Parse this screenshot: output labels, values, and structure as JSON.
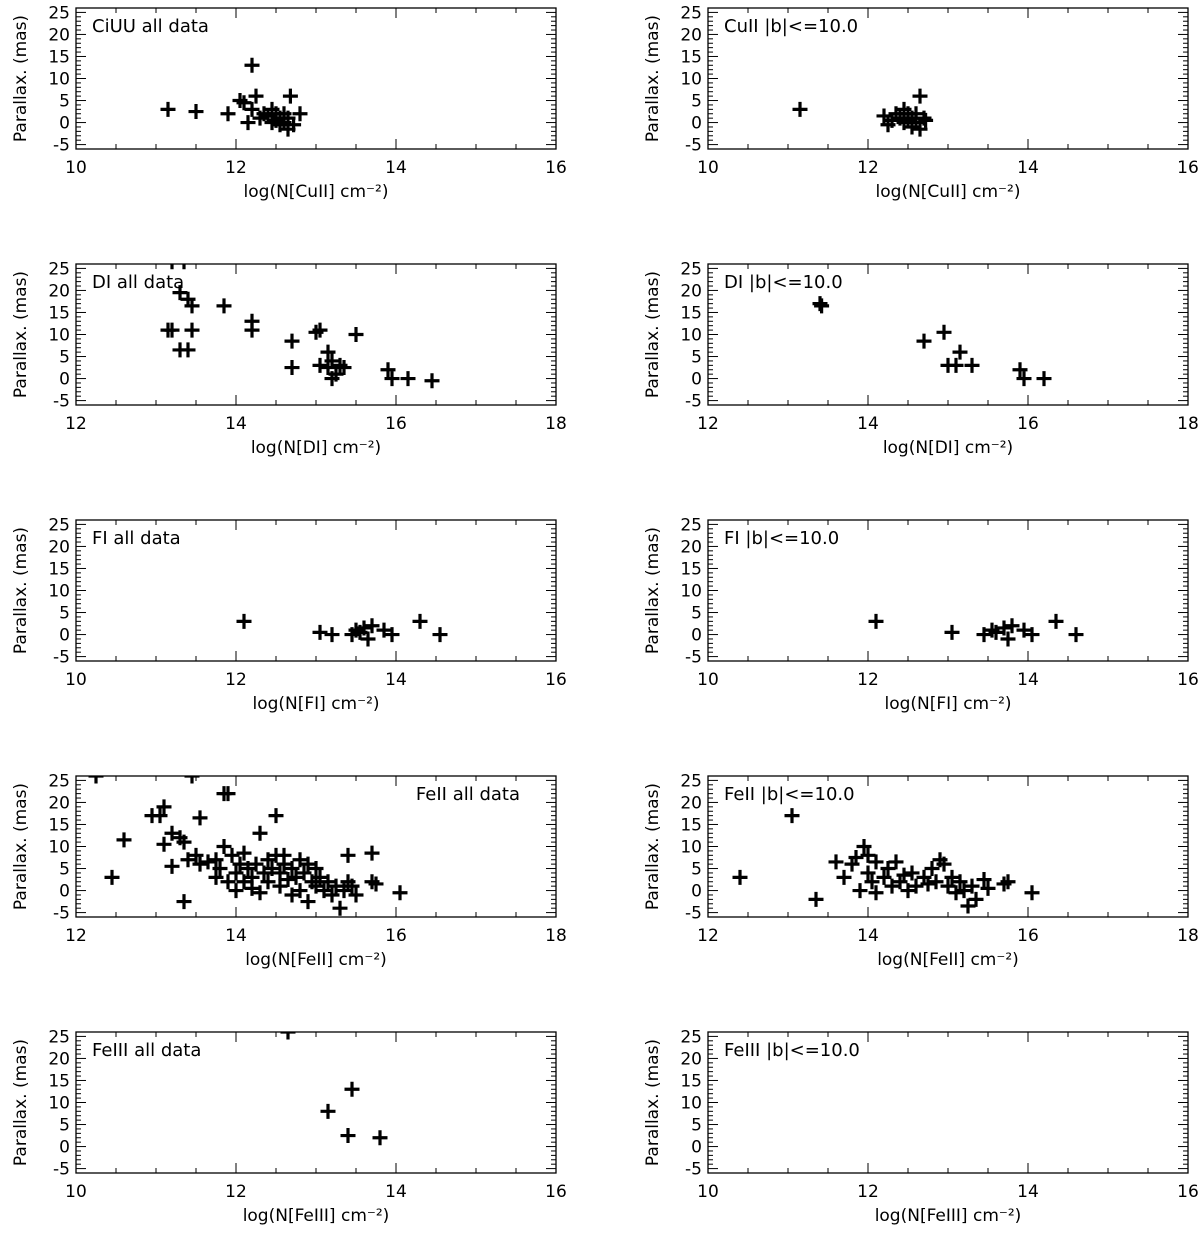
{
  "chart_data": [
    {
      "type": "scatter",
      "title": "CiUU all data",
      "title_pos": "top-left",
      "xlabel": "log(N[CuII] cm⁻²)",
      "ylabel": "Parallax. (mas)",
      "xlim": [
        10,
        16
      ],
      "ylim": [
        -6,
        26
      ],
      "xticks": [
        10,
        12,
        14,
        16
      ],
      "yticks": [
        -5,
        0,
        5,
        10,
        15,
        20,
        25
      ],
      "points": [
        [
          11.15,
          3
        ],
        [
          11.5,
          2.5
        ],
        [
          11.9,
          2
        ],
        [
          12.05,
          5
        ],
        [
          12.1,
          4.5
        ],
        [
          12.15,
          0
        ],
        [
          12.2,
          3
        ],
        [
          12.2,
          13
        ],
        [
          12.25,
          6
        ],
        [
          12.3,
          1
        ],
        [
          12.35,
          2
        ],
        [
          12.4,
          1.5
        ],
        [
          12.45,
          0
        ],
        [
          12.45,
          3
        ],
        [
          12.5,
          2
        ],
        [
          12.5,
          0.5
        ],
        [
          12.55,
          1
        ],
        [
          12.55,
          -0.5
        ],
        [
          12.6,
          2
        ],
        [
          12.6,
          0
        ],
        [
          12.65,
          -1.5
        ],
        [
          12.65,
          1
        ],
        [
          12.68,
          6
        ],
        [
          12.72,
          -0.5
        ],
        [
          12.8,
          2
        ]
      ]
    },
    {
      "type": "scatter",
      "title": "CuII |b|<=10.0",
      "title_pos": "top-left",
      "xlabel": "log(N[CuII] cm⁻²)",
      "ylabel": "Parallax. (mas)",
      "xlim": [
        10,
        16
      ],
      "ylim": [
        -6,
        26
      ],
      "xticks": [
        10,
        12,
        14,
        16
      ],
      "yticks": [
        -5,
        0,
        5,
        10,
        15,
        20,
        25
      ],
      "points": [
        [
          11.15,
          3
        ],
        [
          12.2,
          1.5
        ],
        [
          12.25,
          -0.5
        ],
        [
          12.3,
          0.5
        ],
        [
          12.35,
          2
        ],
        [
          12.4,
          1
        ],
        [
          12.45,
          3
        ],
        [
          12.45,
          0
        ],
        [
          12.5,
          2
        ],
        [
          12.5,
          0.5
        ],
        [
          12.55,
          1
        ],
        [
          12.55,
          -1
        ],
        [
          12.6,
          2
        ],
        [
          12.6,
          0
        ],
        [
          12.65,
          6
        ],
        [
          12.65,
          -1.5
        ],
        [
          12.7,
          1
        ],
        [
          12.72,
          0.5
        ]
      ]
    },
    {
      "type": "scatter",
      "title": "DI all data",
      "title_pos": "top-left",
      "xlabel": "log(N[DI] cm⁻²)",
      "ylabel": "Parallax. (mas)",
      "xlim": [
        12,
        18
      ],
      "ylim": [
        -6,
        26
      ],
      "xticks": [
        12,
        14,
        16,
        18
      ],
      "yticks": [
        -5,
        0,
        5,
        10,
        15,
        20,
        25
      ],
      "points": [
        [
          13.15,
          11
        ],
        [
          13.2,
          11
        ],
        [
          13.3,
          19.5
        ],
        [
          13.3,
          6.5
        ],
        [
          13.4,
          6.5
        ],
        [
          13.4,
          18
        ],
        [
          13.45,
          16.5
        ],
        [
          13.45,
          11
        ],
        [
          13.85,
          16.5
        ],
        [
          14.2,
          13
        ],
        [
          14.2,
          11
        ],
        [
          14.7,
          8.5
        ],
        [
          14.7,
          2.5
        ],
        [
          15.0,
          10.5
        ],
        [
          15.05,
          11
        ],
        [
          15.05,
          3
        ],
        [
          15.15,
          2.5
        ],
        [
          15.15,
          6
        ],
        [
          15.2,
          4
        ],
        [
          15.2,
          0
        ],
        [
          15.25,
          1
        ],
        [
          15.3,
          3
        ],
        [
          15.35,
          2.5
        ],
        [
          15.5,
          10
        ],
        [
          15.9,
          2
        ],
        [
          15.95,
          0
        ],
        [
          16.15,
          0
        ],
        [
          16.45,
          -0.5
        ],
        [
          13.2,
          26.5
        ],
        [
          13.35,
          26.5
        ]
      ]
    },
    {
      "type": "scatter",
      "title": "DI |b|<=10.0",
      "title_pos": "top-left",
      "xlabel": "log(N[DI] cm⁻²)",
      "ylabel": "Parallax. (mas)",
      "xlim": [
        12,
        18
      ],
      "ylim": [
        -6,
        26
      ],
      "xticks": [
        12,
        14,
        16,
        18
      ],
      "yticks": [
        -5,
        0,
        5,
        10,
        15,
        20,
        25
      ],
      "points": [
        [
          13.4,
          17
        ],
        [
          13.42,
          16.5
        ],
        [
          14.7,
          8.5
        ],
        [
          14.95,
          10.5
        ],
        [
          15.0,
          3
        ],
        [
          15.1,
          3
        ],
        [
          15.15,
          6
        ],
        [
          15.3,
          3
        ],
        [
          15.9,
          2
        ],
        [
          15.95,
          0
        ],
        [
          16.2,
          0
        ]
      ]
    },
    {
      "type": "scatter",
      "title": "FI all data",
      "title_pos": "top-left",
      "xlabel": "log(N[FI] cm⁻²)",
      "ylabel": "Parallax. (mas)",
      "xlim": [
        10,
        16
      ],
      "ylim": [
        -6,
        26
      ],
      "xticks": [
        10,
        12,
        14,
        16
      ],
      "yticks": [
        -5,
        0,
        5,
        10,
        15,
        20,
        25
      ],
      "points": [
        [
          12.1,
          3
        ],
        [
          13.05,
          0.5
        ],
        [
          13.2,
          0
        ],
        [
          13.45,
          0
        ],
        [
          13.5,
          1
        ],
        [
          13.55,
          0.5
        ],
        [
          13.6,
          1.5
        ],
        [
          13.65,
          -1
        ],
        [
          13.7,
          2
        ],
        [
          13.85,
          1
        ],
        [
          13.95,
          0
        ],
        [
          14.3,
          3
        ],
        [
          14.55,
          0
        ]
      ]
    },
    {
      "type": "scatter",
      "title": "FI |b|<=10.0",
      "title_pos": "top-left",
      "xlabel": "log(N[FI] cm⁻²)",
      "ylabel": "Parallax. (mas)",
      "xlim": [
        10,
        16
      ],
      "ylim": [
        -6,
        26
      ],
      "xticks": [
        10,
        12,
        14,
        16
      ],
      "yticks": [
        -5,
        0,
        5,
        10,
        15,
        20,
        25
      ],
      "points": [
        [
          12.1,
          3
        ],
        [
          13.05,
          0.5
        ],
        [
          13.45,
          0
        ],
        [
          13.55,
          1
        ],
        [
          13.6,
          0.5
        ],
        [
          13.7,
          1.5
        ],
        [
          13.75,
          -1
        ],
        [
          13.8,
          2
        ],
        [
          13.95,
          1
        ],
        [
          14.05,
          0
        ],
        [
          14.35,
          3
        ],
        [
          14.6,
          0
        ]
      ]
    },
    {
      "type": "scatter",
      "title": "FeII all data",
      "title_pos": "top-right",
      "xlabel": "log(N[FeII] cm⁻²)",
      "ylabel": "Parallax. (mas)",
      "xlim": [
        12,
        18
      ],
      "ylim": [
        -6,
        26
      ],
      "xticks": [
        12,
        14,
        16,
        18
      ],
      "yticks": [
        -5,
        0,
        5,
        10,
        15,
        20,
        25
      ],
      "points": [
        [
          12.25,
          26
        ],
        [
          12.45,
          3
        ],
        [
          12.6,
          11.5
        ],
        [
          12.95,
          17
        ],
        [
          13.05,
          17
        ],
        [
          13.1,
          10.5
        ],
        [
          13.1,
          19
        ],
        [
          13.2,
          13
        ],
        [
          13.2,
          5.5
        ],
        [
          13.3,
          12
        ],
        [
          13.35,
          -2.5
        ],
        [
          13.35,
          11
        ],
        [
          13.4,
          7
        ],
        [
          13.45,
          26
        ],
        [
          13.5,
          8
        ],
        [
          13.55,
          6
        ],
        [
          13.55,
          16.5
        ],
        [
          13.65,
          6.5
        ],
        [
          13.75,
          3
        ],
        [
          13.75,
          7
        ],
        [
          13.8,
          5
        ],
        [
          13.85,
          10
        ],
        [
          13.85,
          22
        ],
        [
          13.9,
          22
        ],
        [
          13.9,
          2
        ],
        [
          13.95,
          8
        ],
        [
          14.0,
          4
        ],
        [
          14.0,
          0
        ],
        [
          14.05,
          6
        ],
        [
          14.1,
          2
        ],
        [
          14.1,
          8.5
        ],
        [
          14.15,
          5
        ],
        [
          14.2,
          3
        ],
        [
          14.2,
          0.5
        ],
        [
          14.25,
          6
        ],
        [
          14.3,
          13
        ],
        [
          14.3,
          -0.5
        ],
        [
          14.35,
          4
        ],
        [
          14.4,
          7
        ],
        [
          14.4,
          2
        ],
        [
          14.45,
          5
        ],
        [
          14.5,
          17
        ],
        [
          14.5,
          8
        ],
        [
          14.55,
          1
        ],
        [
          14.55,
          4
        ],
        [
          14.6,
          6
        ],
        [
          14.6,
          8
        ],
        [
          14.65,
          2.5
        ],
        [
          14.7,
          -1
        ],
        [
          14.7,
          5
        ],
        [
          14.75,
          3
        ],
        [
          14.8,
          7
        ],
        [
          14.8,
          0
        ],
        [
          14.85,
          4
        ],
        [
          14.9,
          6
        ],
        [
          14.9,
          -2.5
        ],
        [
          14.95,
          2
        ],
        [
          15.0,
          1
        ],
        [
          15.0,
          5
        ],
        [
          15.05,
          3
        ],
        [
          15.1,
          0
        ],
        [
          15.15,
          2
        ],
        [
          15.2,
          -1
        ],
        [
          15.25,
          1
        ],
        [
          15.3,
          -4
        ],
        [
          15.35,
          0
        ],
        [
          15.4,
          8
        ],
        [
          15.4,
          2
        ],
        [
          15.45,
          1
        ],
        [
          15.5,
          -1
        ],
        [
          15.7,
          8.5
        ],
        [
          15.7,
          2
        ],
        [
          15.75,
          1.5
        ],
        [
          16.05,
          -0.5
        ]
      ]
    },
    {
      "type": "scatter",
      "title": "FeII |b|<=10.0",
      "title_pos": "top-left",
      "xlabel": "log(N[FeII] cm⁻²)",
      "ylabel": "Parallax. (mas)",
      "xlim": [
        12,
        18
      ],
      "ylim": [
        -6,
        26
      ],
      "xticks": [
        12,
        14,
        16,
        18
      ],
      "yticks": [
        -5,
        0,
        5,
        10,
        15,
        20,
        25
      ],
      "points": [
        [
          12.4,
          3
        ],
        [
          13.05,
          17
        ],
        [
          13.35,
          -2
        ],
        [
          13.6,
          6.5
        ],
        [
          13.7,
          3
        ],
        [
          13.8,
          6
        ],
        [
          13.85,
          7.5
        ],
        [
          13.9,
          0
        ],
        [
          13.95,
          10
        ],
        [
          14.0,
          8
        ],
        [
          14.0,
          4
        ],
        [
          14.05,
          2
        ],
        [
          14.1,
          6.5
        ],
        [
          14.1,
          -0.5
        ],
        [
          14.2,
          3
        ],
        [
          14.25,
          5
        ],
        [
          14.3,
          1
        ],
        [
          14.35,
          6.5
        ],
        [
          14.4,
          2
        ],
        [
          14.45,
          3.5
        ],
        [
          14.5,
          0
        ],
        [
          14.55,
          4
        ],
        [
          14.6,
          1
        ],
        [
          14.7,
          3
        ],
        [
          14.75,
          1.5
        ],
        [
          14.8,
          5
        ],
        [
          14.85,
          2
        ],
        [
          14.9,
          7
        ],
        [
          14.95,
          6
        ],
        [
          15.0,
          1
        ],
        [
          15.05,
          3
        ],
        [
          15.1,
          -0.5
        ],
        [
          15.15,
          2
        ],
        [
          15.2,
          0
        ],
        [
          15.25,
          -3.5
        ],
        [
          15.3,
          1
        ],
        [
          15.35,
          -2
        ],
        [
          15.45,
          2.5
        ],
        [
          15.5,
          0.5
        ],
        [
          15.7,
          1.5
        ],
        [
          15.75,
          2
        ],
        [
          16.05,
          -0.5
        ]
      ]
    },
    {
      "type": "scatter",
      "title": "FeIII all data",
      "title_pos": "top-left",
      "xlabel": "log(N[FeIII] cm⁻²)",
      "ylabel": "Parallax. (mas)",
      "xlim": [
        10,
        16
      ],
      "ylim": [
        -6,
        26
      ],
      "xticks": [
        10,
        12,
        14,
        16
      ],
      "yticks": [
        -5,
        0,
        5,
        10,
        15,
        20,
        25
      ],
      "points": [
        [
          12.65,
          26
        ],
        [
          13.15,
          8
        ],
        [
          13.4,
          2.5
        ],
        [
          13.45,
          13
        ],
        [
          13.8,
          2
        ]
      ]
    },
    {
      "type": "scatter",
      "title": "FeIII |b|<=10.0",
      "title_pos": "top-left",
      "xlabel": "log(N[FeIII] cm⁻²)",
      "ylabel": "Parallax. (mas)",
      "xlim": [
        10,
        16
      ],
      "ylim": [
        -6,
        26
      ],
      "xticks": [
        10,
        12,
        14,
        16
      ],
      "yticks": [
        -5,
        0,
        5,
        10,
        15,
        20,
        25
      ],
      "points": []
    }
  ]
}
